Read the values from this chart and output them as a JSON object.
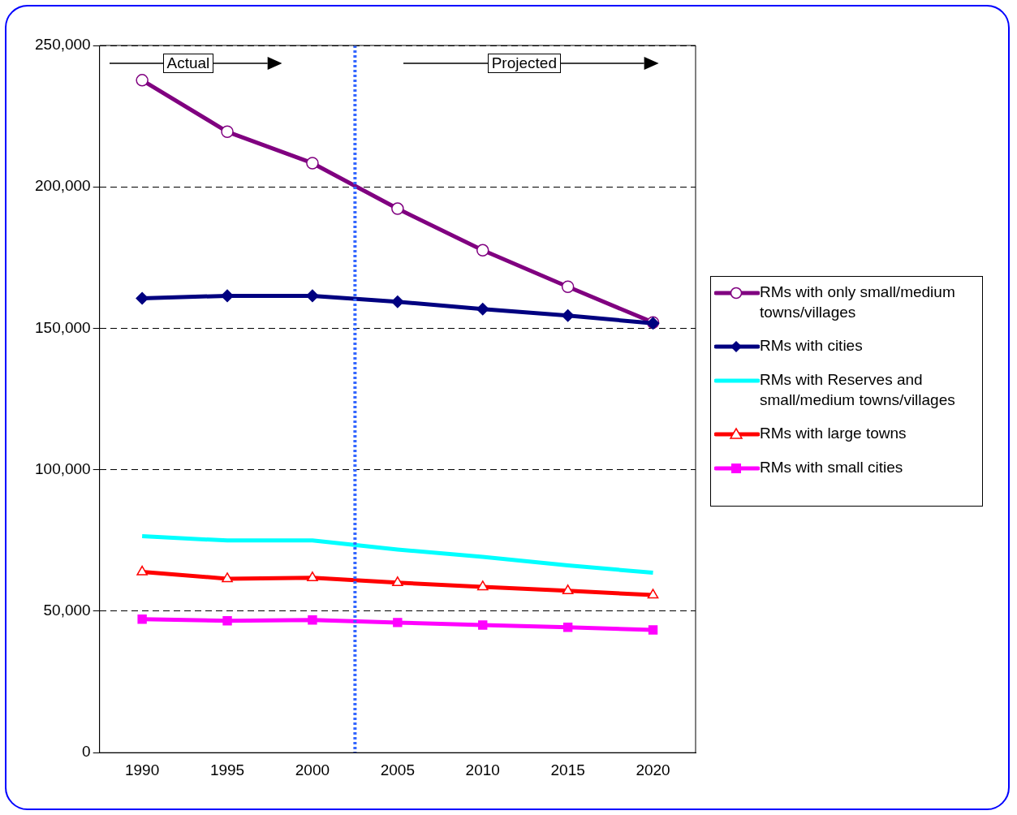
{
  "chart_data": {
    "type": "line",
    "x": [
      1990,
      1995,
      2000,
      2005,
      2010,
      2015,
      2020
    ],
    "xlim": [
      1987.5,
      2022.5
    ],
    "xticks": [
      1990,
      1995,
      2000,
      2005,
      2010,
      2015,
      2020
    ],
    "ylim": [
      0,
      250000
    ],
    "yticks": [
      0,
      {
        "value": 50000,
        "label": "50,000"
      },
      {
        "value": 100000,
        "label": "100,000"
      },
      {
        "value": 150000,
        "label": "150,000"
      },
      {
        "value": 200000,
        "label": "200,000"
      },
      {
        "value": 250000,
        "label": "250,000"
      }
    ],
    "grid": "y",
    "legend": "right",
    "line_style": "solid",
    "series": [
      {
        "name": "RMs with only small/medium towns/villages",
        "color": "#800080",
        "marker": "circle",
        "values": [
          237700,
          219500,
          208400,
          192300,
          177600,
          164700,
          152100
        ]
      },
      {
        "name": "RMs with cities",
        "color": "#000080",
        "marker": "diamond",
        "values": [
          160600,
          161500,
          161500,
          159400,
          156800,
          154500,
          151800
        ]
      },
      {
        "name": "RMs with Reserves and small/medium towns/villages",
        "color": "#00ffff",
        "marker": "none",
        "values": [
          76500,
          75000,
          75000,
          71800,
          69200,
          66200,
          63600
        ]
      },
      {
        "name": "RMs with large towns",
        "color": "#ff0000",
        "marker": "triangle",
        "values": [
          63900,
          61500,
          61800,
          60100,
          58600,
          57200,
          55700
        ]
      },
      {
        "name": "RMs with small cities",
        "color": "#ff00ff",
        "marker": "square",
        "values": [
          47200,
          46600,
          46900,
          46000,
          45100,
          44300,
          43400
        ]
      }
    ],
    "ref_lines": [
      {
        "axis": "x",
        "value": 2002.5,
        "color": "#3366ff",
        "line_style": "dotted"
      }
    ],
    "annotations": [
      "Actual",
      "Projected"
    ]
  }
}
